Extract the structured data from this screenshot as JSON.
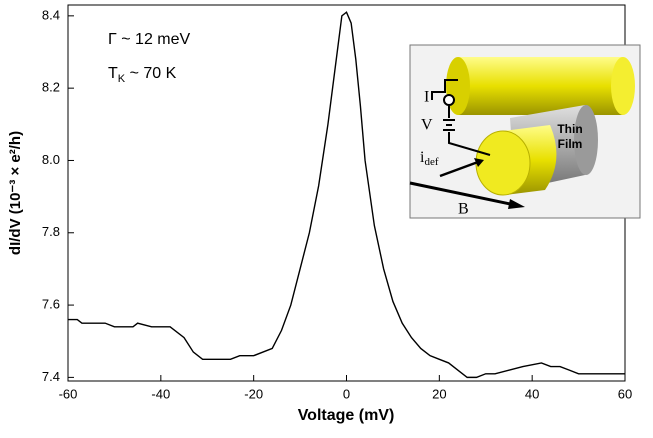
{
  "chart_data": {
    "type": "line",
    "x_label": "Voltage (mV)",
    "y_label": "dI/dV (10⁻³ × e²/h)",
    "annotation_1": "Γ ~ 12 meV",
    "annotation_2": {
      "main": "T",
      "sub": "K",
      "rest": " ~ 70 K"
    },
    "inset": {
      "current": "I",
      "voltage": "V",
      "film_line1": "Thin",
      "film_line2": "Film",
      "defect_main": "i",
      "defect_sub": "def",
      "field": "B"
    },
    "color": "#000000",
    "x": [
      -60,
      -58,
      -57,
      -52,
      -50,
      -46,
      -45,
      -42,
      -38,
      -35,
      -33,
      -31,
      -25,
      -23,
      -20,
      -18,
      -16,
      -14,
      -12,
      -10,
      -8,
      -6,
      -4,
      -2,
      -1,
      0,
      1,
      2,
      3,
      4,
      6,
      8,
      10,
      12,
      14,
      16,
      18,
      20,
      22,
      24,
      26,
      28,
      30,
      32,
      35,
      38,
      42,
      44,
      46,
      48,
      50,
      55,
      60
    ],
    "values": [
      7.56,
      7.56,
      7.55,
      7.55,
      7.54,
      7.54,
      7.55,
      7.54,
      7.54,
      7.51,
      7.47,
      7.45,
      7.45,
      7.46,
      7.46,
      7.47,
      7.48,
      7.53,
      7.6,
      7.7,
      7.8,
      7.93,
      8.1,
      8.3,
      8.4,
      8.41,
      8.38,
      8.28,
      8.15,
      8.0,
      7.82,
      7.7,
      7.61,
      7.55,
      7.51,
      7.48,
      7.46,
      7.45,
      7.44,
      7.42,
      7.4,
      7.4,
      7.41,
      7.41,
      7.42,
      7.43,
      7.44,
      7.43,
      7.43,
      7.42,
      7.41,
      7.41,
      7.41
    ],
    "xlim": [
      -60,
      60
    ],
    "xticks": [
      -60,
      -40,
      -20,
      0,
      20,
      40,
      60
    ],
    "ylim": [
      7.39,
      8.43
    ],
    "yticks": [
      7.4,
      7.6,
      7.8,
      {
        "value": 8,
        "label": "8.0"
      },
      8.2,
      8.4
    ]
  }
}
